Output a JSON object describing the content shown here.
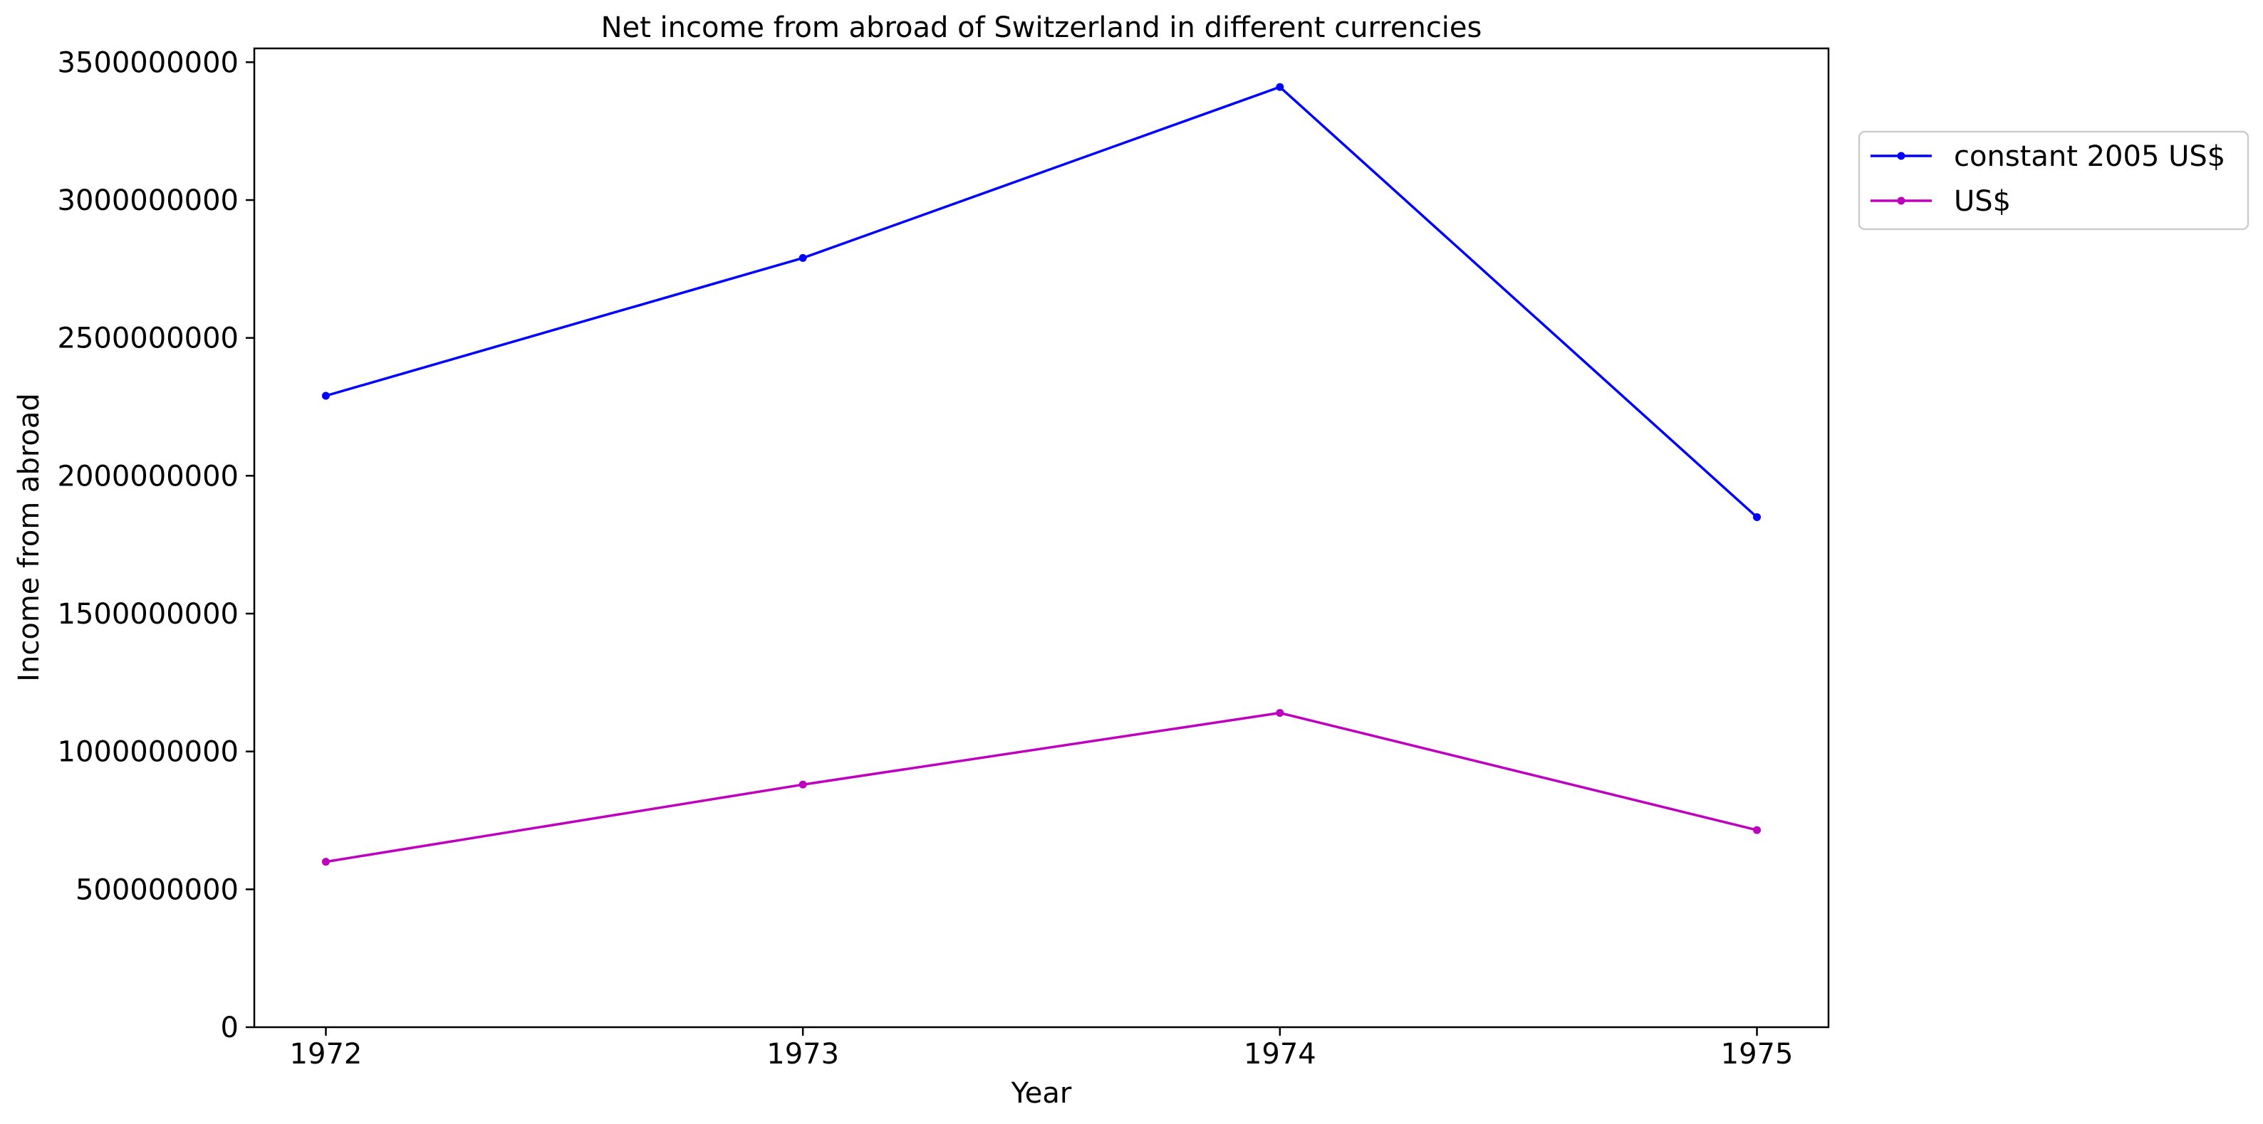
{
  "chart_data": {
    "type": "line",
    "title": "Net income from abroad of Switzerland in different currencies",
    "xlabel": "Year",
    "ylabel": "Income from abroad",
    "x": [
      "1972",
      "1973",
      "1974",
      "1975"
    ],
    "xticks": [
      "1972",
      "1973",
      "1974",
      "1975"
    ],
    "yticks": [
      "0",
      "500000000",
      "1000000000",
      "1500000000",
      "2000000000",
      "2500000000",
      "3000000000",
      "3500000000"
    ],
    "ylim": [
      0,
      3550000000
    ],
    "xlim": [
      1971.85,
      1975.15
    ],
    "grid": false,
    "legend_position": "outside upper right",
    "series": [
      {
        "name": "constant 2005 US$",
        "color": "#0000ff",
        "marker": "dot",
        "values": [
          2290000000,
          2790000000,
          3410000000,
          1850000000
        ]
      },
      {
        "name": "US$",
        "color": "#bf00bf",
        "marker": "dot",
        "values": [
          600000000,
          880000000,
          1140000000,
          715000000
        ]
      }
    ]
  }
}
